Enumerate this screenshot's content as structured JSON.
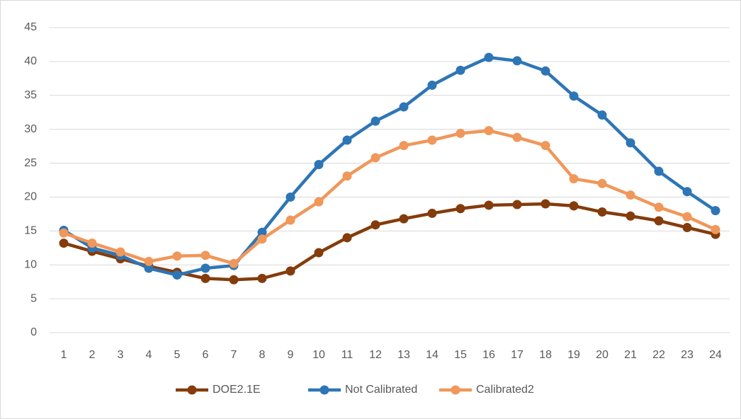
{
  "chart_data": {
    "type": "line",
    "categories": [
      "1",
      "2",
      "3",
      "4",
      "5",
      "6",
      "7",
      "8",
      "9",
      "10",
      "11",
      "12",
      "13",
      "14",
      "15",
      "16",
      "17",
      "18",
      "19",
      "20",
      "21",
      "22",
      "23",
      "24"
    ],
    "series": [
      {
        "name": "DOE2.1E",
        "color": "#843C0C",
        "values": [
          13.2,
          12,
          10.9,
          9.8,
          8.9,
          8,
          7.8,
          8,
          9.1,
          11.8,
          14,
          15.9,
          16.8,
          17.6,
          18.3,
          18.8,
          18.9,
          19,
          18.7,
          17.8,
          17.2,
          16.5,
          15.5,
          14.5
        ]
      },
      {
        "name": "Not Calibrated",
        "color": "#2E75B6",
        "values": [
          15.1,
          12.5,
          11.4,
          9.5,
          8.5,
          9.5,
          9.9,
          14.8,
          20,
          24.8,
          28.4,
          31.2,
          33.3,
          36.5,
          38.7,
          40.6,
          40.1,
          38.6,
          34.9,
          32.1,
          28,
          23.8,
          20.8,
          18
        ]
      },
      {
        "name": "Calibrated2",
        "color": "#F0975A",
        "values": [
          14.7,
          13.2,
          11.9,
          10.5,
          11.3,
          11.4,
          10.2,
          13.8,
          16.6,
          19.3,
          23.1,
          25.8,
          27.6,
          28.4,
          29.4,
          29.8,
          28.8,
          27.6,
          22.7,
          22,
          20.3,
          18.5,
          17.1,
          15.2
        ]
      }
    ],
    "ylim": [
      0,
      45
    ],
    "yticks": [
      0,
      5,
      10,
      15,
      20,
      25,
      30,
      35,
      40,
      45
    ],
    "grid": true,
    "legend": "bottom"
  }
}
